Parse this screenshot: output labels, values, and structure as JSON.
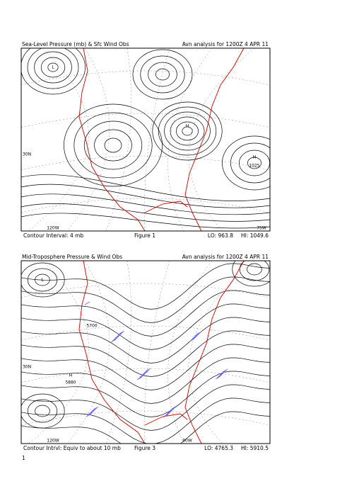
{
  "figures": [
    {
      "title_left": "Sea-Level Pressure (mb) & Sfc Wind Obs",
      "title_right": "Avn analysis for 1200Z  4 APR 11",
      "contour_interval": "Contour Interval: 4 mb",
      "caption": "Figure 1",
      "lo": "LO: 963.8",
      "hi": "HI: 1049.6",
      "map_labels": [
        "120W",
        "75W",
        "30N",
        "H",
        "1025",
        "H",
        "L"
      ]
    },
    {
      "title_left": "Mid-Troposphere Pressure & Wind Obs",
      "title_right": "Avn analysis for 1200Z  4 APR 11",
      "contour_interval": "Contour Intrvl: Equiv to about 10 mb",
      "caption": "Figure 3",
      "lo": "LO: 4765.3",
      "hi": "HI: 5910.5",
      "map_labels": [
        "120W",
        "90W",
        "30N",
        "H",
        "5880",
        "L",
        "5700"
      ]
    }
  ],
  "page_number": "1"
}
